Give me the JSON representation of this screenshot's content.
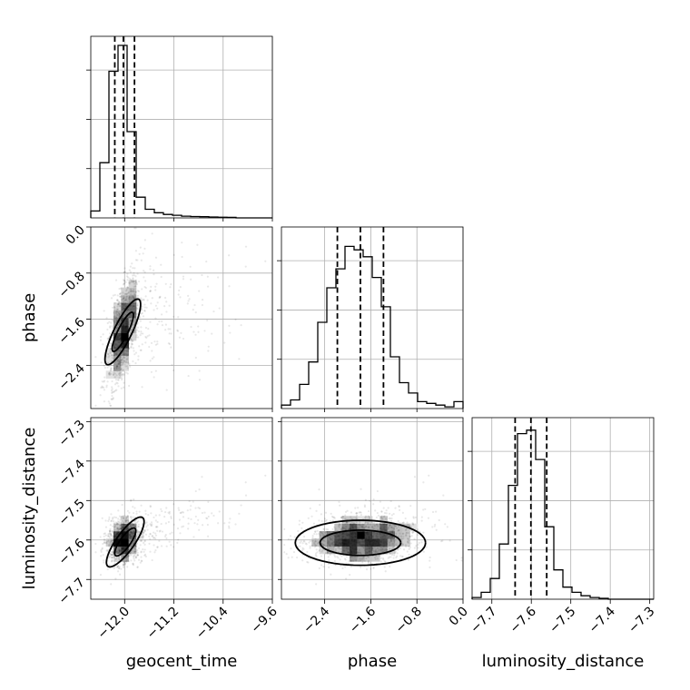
{
  "chart_data": {
    "type": "corner",
    "parameters": [
      "geocent_time",
      "phase",
      "luminosity_distance"
    ],
    "axis_labels": {
      "geocent_time": "geocent_time",
      "phase": "phase",
      "luminosity_distance": "luminosity_distance"
    },
    "ranges": {
      "geocent_time": [
        -12.55,
        -9.6
      ],
      "phase": [
        -3.15,
        0.0
      ],
      "luminosity_distance": [
        -7.75,
        -7.29
      ]
    },
    "ticks": {
      "geocent_time": [
        -12.0,
        -11.2,
        -10.4,
        -9.6
      ],
      "phase": [
        -2.4,
        -1.6,
        -0.8,
        0.0
      ],
      "luminosity_distance": [
        -7.7,
        -7.6,
        -7.5,
        -7.4,
        -7.3
      ]
    },
    "tick_labels": {
      "geocent_time": [
        "−12.0",
        "−11.2",
        "−10.4",
        "−9.6"
      ],
      "phase": [
        "−2.4",
        "−1.6",
        "−0.8",
        "0.0"
      ],
      "luminosity_distance": [
        "−7.7",
        "−7.6",
        "−7.5",
        "−7.4",
        "−7.3"
      ]
    },
    "quantiles": {
      "geocent_time": [
        -12.16,
        -12.02,
        -11.84
      ],
      "phase": [
        -2.18,
        -1.78,
        -1.38
      ],
      "luminosity_distance": [
        -7.641,
        -7.601,
        -7.561
      ]
    },
    "histograms": {
      "geocent_time": {
        "edges": [
          -12.55,
          -12.4025,
          -12.255,
          -12.1075,
          -11.96,
          -11.8125,
          -11.665,
          -11.5175,
          -11.37,
          -11.2225,
          -11.075,
          -10.9275,
          -10.78,
          -10.6325,
          -10.485,
          -10.3375,
          -10.19,
          -10.0425,
          -9.895,
          -9.7475,
          -9.6
        ],
        "counts": [
          0.04,
          0.32,
          0.85,
          1.0,
          0.5,
          0.12,
          0.05,
          0.03,
          0.02,
          0.015,
          0.01,
          0.008,
          0.007,
          0.005,
          0.004,
          0.003,
          0.0,
          0.0,
          0.0,
          0.0
        ]
      },
      "phase": {
        "edges": [
          -3.15,
          -2.9925,
          -2.835,
          -2.6775,
          -2.52,
          -2.3625,
          -2.205,
          -2.0475,
          -1.89,
          -1.7325,
          -1.575,
          -1.4175,
          -1.26,
          -1.1025,
          -0.945,
          -0.7875,
          -0.63,
          -0.4725,
          -0.315,
          -0.1575,
          0.0
        ],
        "counts": [
          0.02,
          0.05,
          0.14,
          0.27,
          0.5,
          0.7,
          0.81,
          0.94,
          0.92,
          0.88,
          0.76,
          0.59,
          0.3,
          0.15,
          0.09,
          0.04,
          0.03,
          0.02,
          0.01,
          0.04
        ]
      },
      "luminosity_distance": {
        "edges": [
          -7.75,
          -7.727,
          -7.704,
          -7.681,
          -7.658,
          -7.635,
          -7.612,
          -7.589,
          -7.566,
          -7.543,
          -7.52,
          -7.497,
          -7.474,
          -7.451,
          -7.428,
          -7.405,
          -7.382,
          -7.359,
          -7.336,
          -7.313,
          -7.29
        ],
        "counts": [
          0.01,
          0.04,
          0.12,
          0.32,
          0.66,
          0.96,
          0.98,
          0.81,
          0.42,
          0.17,
          0.07,
          0.04,
          0.02,
          0.01,
          0.005,
          0.0,
          0.0,
          0.0,
          0.0,
          0.0
        ]
      }
    },
    "scatter_samples": 2200,
    "contour_levels": [
      0.39,
      0.86
    ],
    "grid": true
  }
}
